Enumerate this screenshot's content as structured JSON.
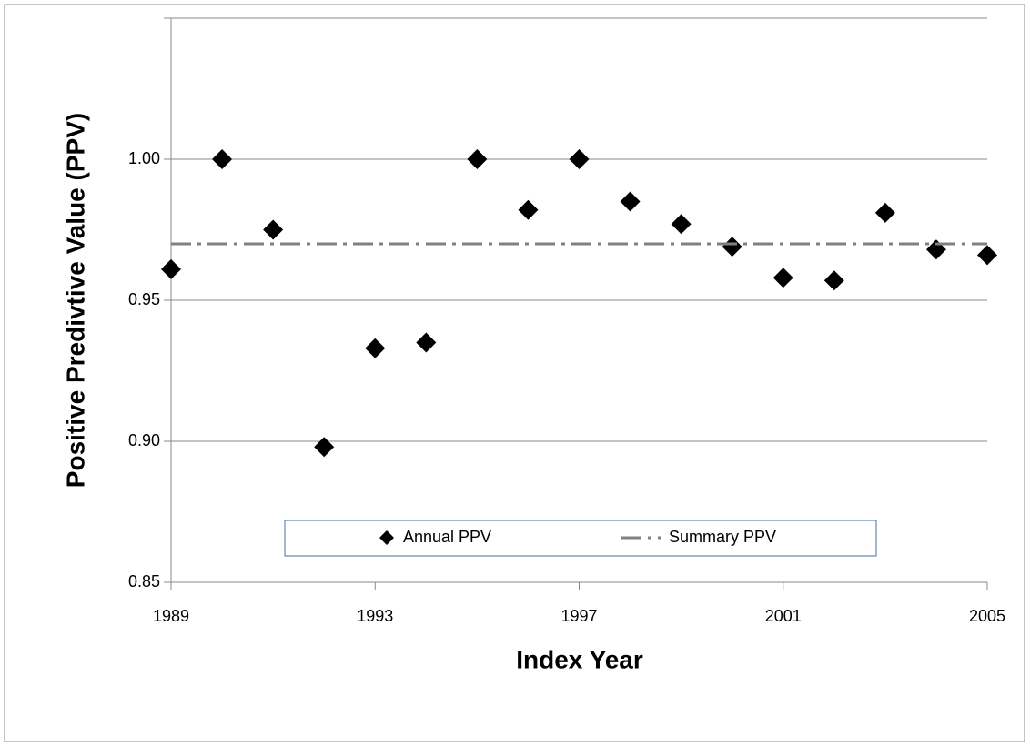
{
  "chart_data": {
    "type": "scatter",
    "x_label": "Index Year",
    "y_label": "Positive Predivtive Value (PPV)",
    "xlim": [
      1989,
      2005
    ],
    "xticks": [
      1989,
      1993,
      1997,
      2001,
      2005
    ],
    "ylim": [
      0.85,
      1.05
    ],
    "yticks": [
      {
        "value": 0.85,
        "label": "0.85"
      },
      {
        "value": 0.9,
        "label": "0.90"
      },
      {
        "value": 0.95,
        "label": "0.95"
      },
      {
        "value": 1.0,
        "label": "1.00"
      }
    ],
    "grid": true,
    "series": [
      {
        "name": "Annual PPV",
        "type": "scatter",
        "marker": "diamond",
        "color": "#000000",
        "x": [
          1989,
          1990,
          1991,
          1992,
          1993,
          1994,
          1995,
          1996,
          1997,
          1998,
          1999,
          2000,
          2001,
          2002,
          2003,
          2004,
          2005
        ],
        "values": [
          0.961,
          1.0,
          0.975,
          0.898,
          0.933,
          0.935,
          1.0,
          0.982,
          1.0,
          0.985,
          0.977,
          0.969,
          0.958,
          0.957,
          0.981,
          0.968,
          0.966
        ]
      },
      {
        "name": "Summary PPV",
        "type": "line",
        "dash": "dash-dot",
        "color": "#808080",
        "x": [
          1989,
          2005
        ],
        "values": [
          0.97,
          0.97
        ]
      }
    ]
  }
}
